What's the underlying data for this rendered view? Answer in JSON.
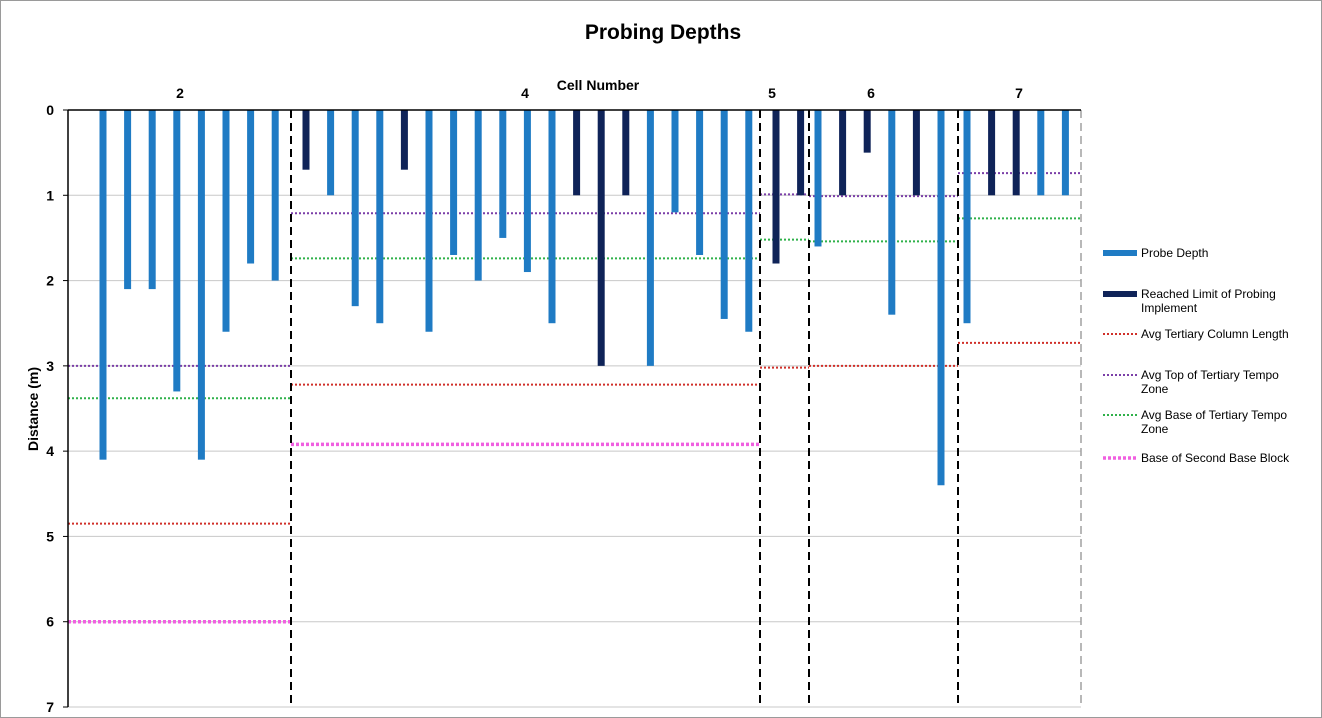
{
  "chart_data": {
    "type": "bar",
    "title": "Probing Depths",
    "top_axis_label": "Cell Number",
    "ylabel": "Distance (m)",
    "ylim": [
      0,
      7
    ],
    "y_inverted": true,
    "y_ticks": [
      "0",
      "1",
      "2",
      "3",
      "4",
      "5",
      "6",
      "7"
    ],
    "grid": true,
    "legend_position": "right",
    "colors": {
      "probe_depth": "#1f7bc4",
      "reached_limit": "#0f2358",
      "avg_tertiary_column_length": "#d0302a",
      "avg_top_tempo_zone": "#7b3fa8",
      "avg_base_tempo_zone": "#2fb14a",
      "base_second_base_block": "#f060e0",
      "grid": "#c8c8c8",
      "divider": "#000000"
    },
    "cells": [
      {
        "label": "2",
        "probes": [
          {
            "depth": 4.1,
            "series": "Probe Depth"
          },
          {
            "depth": 2.1,
            "series": "Probe Depth"
          },
          {
            "depth": 2.1,
            "series": "Probe Depth"
          },
          {
            "depth": 3.3,
            "series": "Probe Depth"
          },
          {
            "depth": 4.1,
            "series": "Probe Depth"
          },
          {
            "depth": 2.6,
            "series": "Probe Depth"
          },
          {
            "depth": 1.8,
            "series": "Probe Depth"
          },
          {
            "depth": 2.0,
            "series": "Probe Depth"
          }
        ],
        "avg_tertiary_column_length": 4.85,
        "avg_top_tempo_zone": 3.0,
        "avg_base_tempo_zone": 3.38,
        "base_second_base_block": 6.0
      },
      {
        "label": "4",
        "probes": [
          {
            "depth": 0.7,
            "series": "Reached Limit of Probing Implement"
          },
          {
            "depth": 1.0,
            "series": "Probe Depth"
          },
          {
            "depth": 2.3,
            "series": "Probe Depth"
          },
          {
            "depth": 2.5,
            "series": "Probe Depth"
          },
          {
            "depth": 0.7,
            "series": "Reached Limit of Probing Implement"
          },
          {
            "depth": 2.6,
            "series": "Probe Depth"
          },
          {
            "depth": 1.7,
            "series": "Probe Depth"
          },
          {
            "depth": 2.0,
            "series": "Probe Depth"
          },
          {
            "depth": 1.5,
            "series": "Probe Depth"
          },
          {
            "depth": 1.9,
            "series": "Probe Depth"
          },
          {
            "depth": 2.5,
            "series": "Probe Depth"
          },
          {
            "depth": 1.0,
            "series": "Reached Limit of Probing Implement"
          },
          {
            "depth": 3.0,
            "series": "Reached Limit of Probing Implement"
          },
          {
            "depth": 1.0,
            "series": "Reached Limit of Probing Implement"
          },
          {
            "depth": 3.0,
            "series": "Probe Depth"
          },
          {
            "depth": 1.2,
            "series": "Probe Depth"
          },
          {
            "depth": 1.7,
            "series": "Probe Depth"
          },
          {
            "depth": 2.45,
            "series": "Probe Depth"
          },
          {
            "depth": 2.6,
            "series": "Probe Depth"
          }
        ],
        "avg_tertiary_column_length": 3.22,
        "avg_top_tempo_zone": 1.21,
        "avg_base_tempo_zone": 1.74,
        "base_second_base_block": 3.92
      },
      {
        "label": "5",
        "probes": [
          {
            "depth": 1.8,
            "series": "Reached Limit of Probing Implement"
          },
          {
            "depth": 1.0,
            "series": "Reached Limit of Probing Implement"
          }
        ],
        "avg_tertiary_column_length": 3.02,
        "avg_top_tempo_zone": 0.99,
        "avg_base_tempo_zone": 1.52
      },
      {
        "label": "6",
        "probes": [
          {
            "depth": 1.6,
            "series": "Probe Depth"
          },
          {
            "depth": 1.0,
            "series": "Reached Limit of Probing Implement"
          },
          {
            "depth": 0.5,
            "series": "Reached Limit of Probing Implement"
          },
          {
            "depth": 2.4,
            "series": "Probe Depth"
          },
          {
            "depth": 1.0,
            "series": "Reached Limit of Probing Implement"
          },
          {
            "depth": 4.4,
            "series": "Probe Depth"
          }
        ],
        "avg_tertiary_column_length": 3.0,
        "avg_top_tempo_zone": 1.01,
        "avg_base_tempo_zone": 1.54
      },
      {
        "label": "7",
        "probes": [
          {
            "depth": 2.5,
            "series": "Probe Depth"
          },
          {
            "depth": 1.0,
            "series": "Reached Limit of Probing Implement"
          },
          {
            "depth": 1.0,
            "series": "Reached Limit of Probing Implement"
          },
          {
            "depth": 1.0,
            "series": "Probe Depth"
          },
          {
            "depth": 1.0,
            "series": "Probe Depth"
          }
        ],
        "avg_tertiary_column_length": 2.73,
        "avg_top_tempo_zone": 0.74,
        "avg_base_tempo_zone": 1.27
      }
    ],
    "legend": [
      {
        "label": "Probe Depth",
        "style": "bar",
        "color": "#1f7bc4"
      },
      {
        "label": "Reached Limit of Probing Implement",
        "style": "bar",
        "color": "#0f2358"
      },
      {
        "label": "Avg Tertiary Column Length",
        "style": "dotted",
        "color": "#d0302a"
      },
      {
        "label": "Avg Top of Tertiary Tempo Zone",
        "style": "dotted",
        "color": "#7b3fa8"
      },
      {
        "label": "Avg Base of Tertiary Tempo Zone",
        "style": "dotted",
        "color": "#2fb14a"
      },
      {
        "label": "Base of Second Base Block",
        "style": "dotted-thick",
        "color": "#f060e0"
      }
    ]
  }
}
